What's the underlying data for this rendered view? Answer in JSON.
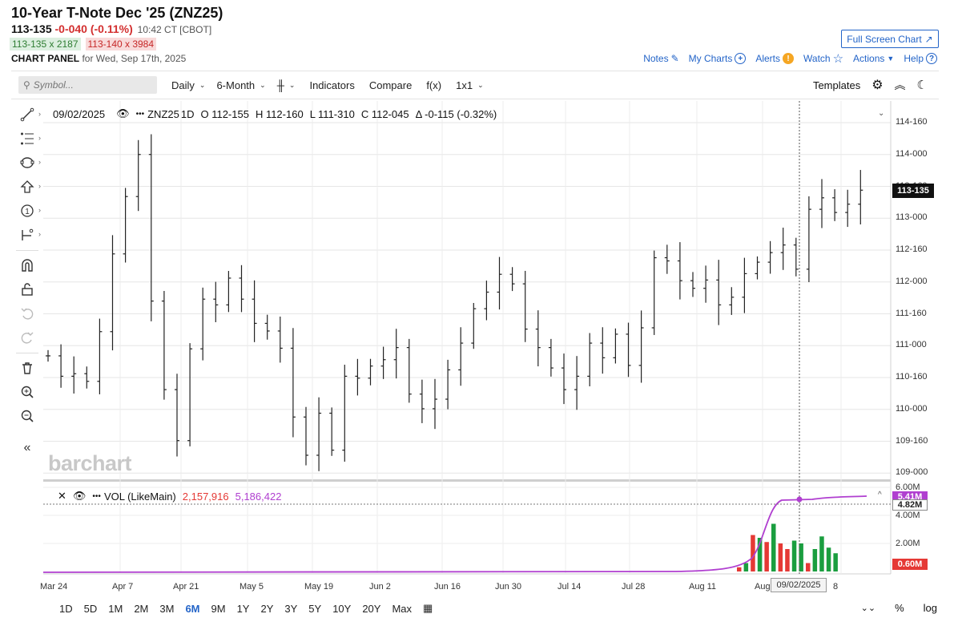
{
  "header": {
    "title": "10-Year T-Note Dec '25 (ZNZ25)",
    "last": "113-135",
    "change": "-0-040 (-0.11%)",
    "time": "10:42 CT [CBOT]",
    "bid": "113-135 x 2187",
    "ask": "113-140 x 3984",
    "panel_label": "CHART PANEL",
    "panel_date": "for Wed, Sep 17th, 2025",
    "fullscreen_label": "Full Screen Chart"
  },
  "topnav": {
    "notes": "Notes",
    "my_charts": "My Charts",
    "alerts": "Alerts",
    "watch": "Watch",
    "actions": "Actions",
    "help": "Help"
  },
  "toolbar": {
    "symbol_placeholder": "Symbol...",
    "interval": "Daily",
    "range": "6-Month",
    "indicators": "Indicators",
    "compare": "Compare",
    "fx": "f(x)",
    "layout": "1x1",
    "templates": "Templates"
  },
  "info_bar": {
    "date": "09/02/2025",
    "symbol": "ZNZ25",
    "interval": "1D",
    "open": "O 112-155",
    "high": "H 112-160",
    "low": "L 111-310",
    "close": "C 112-045",
    "delta": "Δ -0-115 (-0.32%)"
  },
  "volume_bar": {
    "label": "VOL (LikeMain)",
    "value": "2,157,916",
    "avg": "5,186,422"
  },
  "chart_data": {
    "type": "ohlc",
    "y_ticks": [
      "114-160",
      "114-000",
      "113-160",
      "113-000",
      "112-160",
      "112-000",
      "111-160",
      "111-000",
      "110-160",
      "110-000",
      "109-160",
      "109-000"
    ],
    "x_ticks": [
      "Mar 24",
      "Apr 7",
      "Apr 21",
      "May 5",
      "May 19",
      "Jun 2",
      "Jun 16",
      "Jun 30",
      "Jul 14",
      "Jul 28",
      "Aug 11",
      "Aug",
      "8"
    ],
    "last_price_tag": "113-135",
    "crosshair_date": "09/02/2025",
    "volume_ticks": [
      "6.00M",
      "4.00M",
      "2.00M"
    ],
    "volume_tags": {
      "avg": "5.41M",
      "crosshair": "4.82M",
      "current": "0.60M"
    },
    "bars_approx_prices_in_points": [
      110.84,
      110.52,
      110.56,
      110.44,
      111.22,
      112.44,
      113.34,
      114.0,
      111.7,
      110.31,
      109.51,
      110.95,
      111.73,
      111.64,
      112.06,
      111.73,
      111.35,
      111.23,
      110.96,
      109.88,
      109.28,
      109.94,
      109.36,
      110.52,
      110.49,
      110.68,
      110.78,
      110.97,
      110.24,
      110.01,
      110.16,
      110.62,
      111.04,
      111.58,
      111.84,
      112.12,
      111.97,
      111.26,
      110.97,
      110.65,
      110.31,
      110.52,
      111.04,
      110.81,
      111.18,
      110.69,
      111.28,
      112.38,
      112.33,
      112.02,
      111.9,
      112.03,
      111.64,
      111.76,
      112.13,
      112.31,
      112.46,
      112.58,
      112.2,
      113.14,
      113.32,
      113.09,
      113.22,
      113.44
    ],
    "volume_series": {
      "green_bars_recent": [
        0.6,
        2.4,
        3.4,
        2.2,
        2.0,
        1.6,
        2.5,
        1.7,
        1.3,
        0.9,
        1.2
      ],
      "red_bars_recent": [
        0.3,
        2.6,
        2.1,
        2.0,
        1.6,
        0.6
      ]
    }
  },
  "ranges": [
    "1D",
    "5D",
    "1M",
    "2M",
    "3M",
    "6M",
    "9M",
    "1Y",
    "2Y",
    "3Y",
    "5Y",
    "10Y",
    "20Y",
    "Max"
  ],
  "active_range": "6M",
  "bottom_right": {
    "percent": "%",
    "log": "log"
  },
  "watermark": "barchart"
}
